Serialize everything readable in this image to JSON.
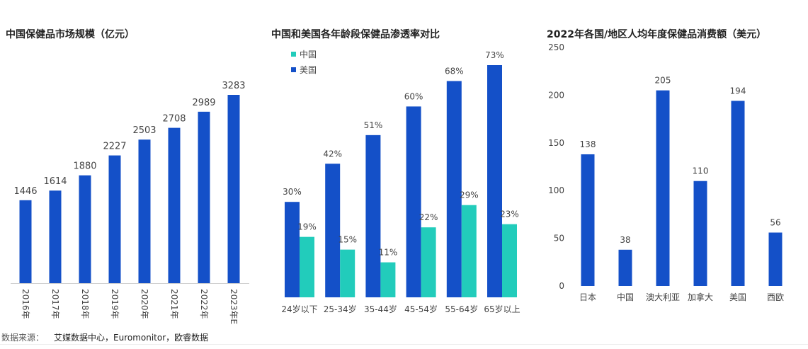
{
  "colors": {
    "primary": "#1450C8",
    "secondary": "#22CCBB",
    "axis": "#d0d0d0"
  },
  "source": {
    "label": "数据来源：",
    "text": "艾媒数据中心，Euromonitor，欧睿数据"
  },
  "chart_data": [
    {
      "type": "bar",
      "title": "中国保健品市场规模（亿元）",
      "categories": [
        "2016年",
        "2017年",
        "2018年",
        "2019年",
        "2020年",
        "2021年",
        "2022年",
        "2023年E"
      ],
      "values": [
        1446,
        1614,
        1880,
        2227,
        2503,
        2708,
        2989,
        3283
      ],
      "data_labels": [
        "1446",
        "1614",
        "1880",
        "2227",
        "2503",
        "2708",
        "2989",
        "3283"
      ],
      "xlabel": "",
      "ylabel": "",
      "ylim": [
        0,
        3283
      ]
    },
    {
      "type": "bar",
      "title": "中国和美国各年龄段保健品渗透率对比",
      "categories": [
        "24岁以下",
        "25-34岁",
        "35-44岁",
        "45-54岁",
        "55-64岁",
        "65岁以上"
      ],
      "legend": {
        "position": "top-left",
        "entries": [
          "中国",
          "美国"
        ]
      },
      "series": [
        {
          "name": "美国",
          "values": [
            30,
            42,
            51,
            60,
            68,
            73
          ],
          "labels": [
            "30%",
            "42%",
            "51%",
            "60%",
            "68%",
            "73%"
          ]
        },
        {
          "name": "中国",
          "values": [
            19,
            15,
            11,
            22,
            29,
            23
          ],
          "labels": [
            "19%",
            "15%",
            "11%",
            "22%",
            "29%",
            "23%"
          ]
        }
      ],
      "ylim": [
        0,
        73
      ]
    },
    {
      "type": "bar",
      "title": "2022年各国/地区人均年度保健品消费额（美元）",
      "categories": [
        "日本",
        "中国",
        "澳大利亚",
        "加拿大",
        "美国",
        "西欧"
      ],
      "values": [
        138,
        38,
        205,
        110,
        194,
        56
      ],
      "data_labels": [
        "138",
        "38",
        "205",
        "110",
        "194",
        "56"
      ],
      "yticks": [
        "0",
        "50",
        "100",
        "150",
        "200",
        "250"
      ],
      "ylim": [
        0,
        250
      ]
    }
  ]
}
